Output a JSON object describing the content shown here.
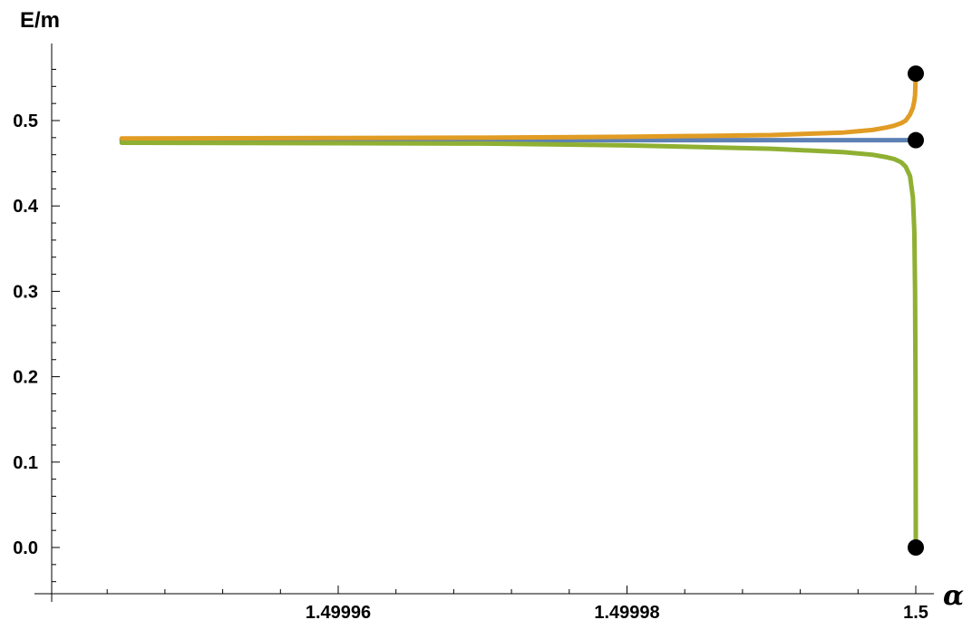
{
  "chart_data": {
    "type": "line",
    "xlabel": "α",
    "ylabel": "E/m",
    "xlim": [
      1.499945,
      1.5000015
    ],
    "ylim": [
      -0.05,
      0.58
    ],
    "x_ticks": [
      {
        "value": 1.49996,
        "label": "1.49996"
      },
      {
        "value": 1.49998,
        "label": "1.49998"
      },
      {
        "value": 1.5,
        "label": "1.5"
      }
    ],
    "y_ticks": [
      {
        "value": 0.0,
        "label": "0.0"
      },
      {
        "value": 0.1,
        "label": "0.1"
      },
      {
        "value": 0.2,
        "label": "0.2"
      },
      {
        "value": 0.3,
        "label": "0.3"
      },
      {
        "value": 0.4,
        "label": "0.4"
      },
      {
        "value": 0.5,
        "label": "0.5"
      }
    ],
    "grid": false,
    "series": [
      {
        "color": "#5e81b5",
        "points": [
          [
            1.499945,
            0.477
          ],
          [
            1.49998,
            0.477
          ],
          [
            1.5,
            0.477
          ]
        ]
      },
      {
        "color": "#e19c24",
        "points": [
          [
            1.499945,
            0.479
          ],
          [
            1.49996,
            0.4795
          ],
          [
            1.49997,
            0.48
          ],
          [
            1.49998,
            0.481
          ],
          [
            1.49999,
            0.483
          ],
          [
            1.499995,
            0.486
          ],
          [
            1.499997,
            0.489
          ],
          [
            1.499998,
            0.492
          ],
          [
            1.4999985,
            0.494
          ],
          [
            1.499999,
            0.497
          ],
          [
            1.4999993,
            0.5
          ],
          [
            1.4999996,
            0.507
          ],
          [
            1.4999998,
            0.515
          ],
          [
            1.4999999,
            0.523
          ],
          [
            1.49999995,
            0.53
          ],
          [
            1.5,
            0.555
          ]
        ]
      },
      {
        "color": "#8fb032",
        "points": [
          [
            1.499945,
            0.474
          ],
          [
            1.49996,
            0.4735
          ],
          [
            1.49997,
            0.473
          ],
          [
            1.49998,
            0.471
          ],
          [
            1.49999,
            0.467
          ],
          [
            1.499995,
            0.463
          ],
          [
            1.499997,
            0.46
          ],
          [
            1.499998,
            0.457
          ],
          [
            1.4999985,
            0.455
          ],
          [
            1.499999,
            0.451
          ],
          [
            1.4999993,
            0.446
          ],
          [
            1.4999996,
            0.435
          ],
          [
            1.4999998,
            0.41
          ],
          [
            1.4999999,
            0.37
          ],
          [
            1.49999995,
            0.3
          ],
          [
            1.49999998,
            0.2
          ],
          [
            1.49999999,
            0.12
          ],
          [
            1.5,
            0.01
          ]
        ]
      }
    ],
    "endpoints": [
      {
        "x": 1.5,
        "y": 0.555,
        "color": "#000000"
      },
      {
        "x": 1.5,
        "y": 0.477,
        "color": "#000000"
      },
      {
        "x": 1.5,
        "y": 0.0,
        "color": "#000000"
      }
    ]
  }
}
